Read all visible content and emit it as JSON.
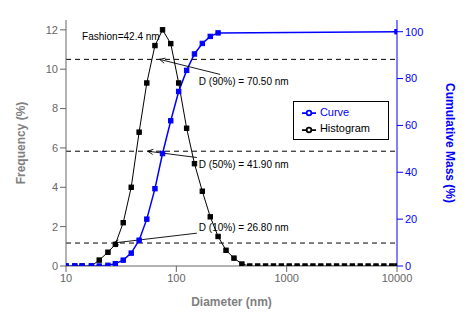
{
  "chart_data": {
    "type": "line",
    "xlabel": "Diameter (nm)",
    "ylabel": "Frequency (%)",
    "y2label": "Cumulative Mass (%)",
    "log": "x",
    "xlim": [
      10,
      10000
    ],
    "xticks": [
      10,
      100,
      1000,
      10000
    ],
    "ylim": [
      0,
      12.5
    ],
    "yticks": [
      0,
      2,
      4,
      6,
      8,
      10,
      12
    ],
    "y2lim": [
      0,
      105
    ],
    "y2ticks": [
      0,
      20,
      40,
      60,
      80,
      100
    ],
    "legend": "right",
    "series": [
      {
        "name": "Histogram",
        "color": "black",
        "marker": "square",
        "x": [
          10,
          12,
          14,
          17,
          20,
          24,
          28,
          33,
          39,
          46,
          54,
          64,
          75,
          89,
          105,
          124,
          146,
          172,
          203,
          239,
          282,
          333,
          393,
          463,
          546,
          644,
          759,
          895,
          1055,
          1244,
          1467,
          1729,
          2039,
          2404,
          2834,
          3340,
          3939,
          4642,
          5474,
          6453,
          7606,
          8969,
          10000
        ],
        "values": [
          0,
          0,
          0,
          0,
          0.3,
          0.7,
          1.1,
          2.2,
          4.0,
          6.8,
          9.3,
          11.2,
          12.0,
          11.3,
          9.3,
          7.0,
          5.2,
          3.8,
          2.5,
          1.5,
          0.8,
          0.4,
          0.1,
          0,
          0,
          0,
          0,
          0,
          0,
          0,
          0,
          0,
          0,
          0,
          0,
          0,
          0,
          0,
          0,
          0,
          0,
          0,
          0
        ]
      },
      {
        "name": "Curve",
        "color": "blue",
        "marker": "square",
        "axis": "y2",
        "x": [
          10,
          12,
          14,
          17,
          20,
          24,
          28,
          33,
          39,
          46,
          54,
          64,
          75,
          89,
          105,
          124,
          146,
          172,
          203,
          239,
          10000
        ],
        "values": [
          0,
          0,
          0,
          0,
          0,
          0.3,
          1.0,
          2.5,
          5.5,
          11.0,
          20.0,
          33.0,
          48.0,
          62.0,
          74.5,
          83.5,
          90.5,
          95.0,
          98.0,
          99.5,
          100.0
        ]
      }
    ],
    "reference_lines": [
      {
        "y": 1.167,
        "line_style": "dashed",
        "color": "black"
      },
      {
        "y": 5.833,
        "line_style": "dashed",
        "color": "black"
      },
      {
        "y": 10.5,
        "line_style": "dashed",
        "color": "black"
      }
    ],
    "annotations": [
      {
        "text": "Fashion=42.4 nm",
        "x": 42.4,
        "y": 12.0,
        "text_x": 14,
        "text_y": 11.5
      },
      {
        "text": "D (90%) = 70.50 nm",
        "x": 70.5,
        "y": 10.5,
        "text_x": 160,
        "text_y": 9.2
      },
      {
        "text": "D (50%) = 41.90 nm",
        "x": 55.0,
        "y": 5.833,
        "text_x": 160,
        "text_y": 5.0
      },
      {
        "text": "D (10%) = 26.80 nm",
        "x": 26.8,
        "y": 1.167,
        "text_x": 160,
        "text_y": 1.8
      }
    ]
  }
}
